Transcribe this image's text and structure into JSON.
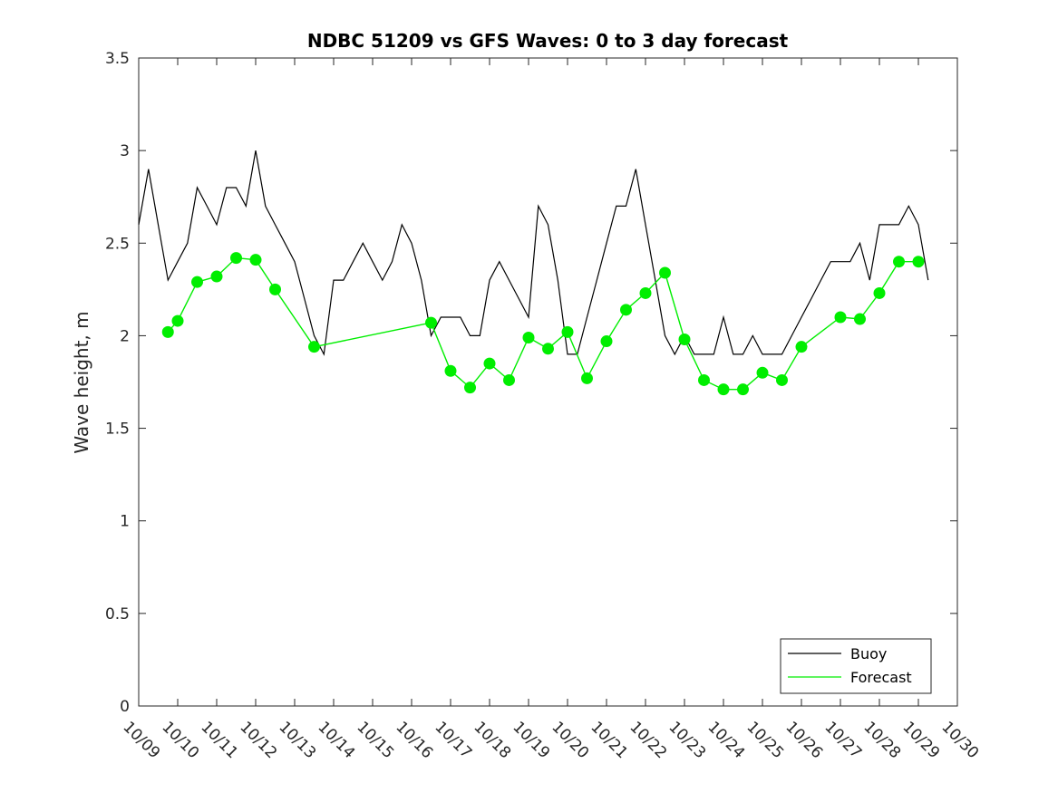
{
  "chart_data": {
    "type": "line",
    "title": "NDBC 51209 vs GFS Waves: 0 to 3 day forecast",
    "xlabel": "",
    "ylabel": "Wave height, m",
    "xlim": [
      0,
      21
    ],
    "ylim": [
      0,
      3.5
    ],
    "x_ticks": [
      0,
      1,
      2,
      3,
      4,
      5,
      6,
      7,
      8,
      9,
      10,
      11,
      12,
      13,
      14,
      15,
      16,
      17,
      18,
      19,
      20,
      21
    ],
    "x_tick_labels": [
      "10/09",
      "10/10",
      "10/11",
      "10/12",
      "10/13",
      "10/14",
      "10/15",
      "10/16",
      "10/17",
      "10/18",
      "10/19",
      "10/20",
      "10/21",
      "10/22",
      "10/23",
      "10/24",
      "10/25",
      "10/26",
      "10/27",
      "10/28",
      "10/29",
      "10/30"
    ],
    "y_ticks": [
      0,
      0.5,
      1,
      1.5,
      2,
      2.5,
      3,
      3.5
    ],
    "y_tick_labels": [
      "0",
      "0.5",
      "1",
      "1.5",
      "2",
      "2.5",
      "3",
      "3.5"
    ],
    "grid": false,
    "legend_position": "bottom-right",
    "colors": {
      "buoy": "#000000",
      "forecast": "#00ee00"
    },
    "series": [
      {
        "name": "Buoy",
        "style": "line",
        "x": [
          0,
          0.25,
          0.5,
          0.75,
          1,
          1.25,
          1.5,
          1.75,
          2,
          2.25,
          2.5,
          2.75,
          3,
          3.25,
          3.5,
          3.75,
          4,
          4.25,
          4.5,
          4.75,
          5,
          5.25,
          5.5,
          5.75,
          6,
          6.25,
          6.5,
          6.75,
          7,
          7.25,
          7.5,
          7.75,
          8,
          8.25,
          8.5,
          8.75,
          9,
          9.25,
          9.5,
          9.75,
          10,
          10.25,
          10.5,
          10.75,
          11,
          11.25,
          11.5,
          11.75,
          12,
          12.25,
          12.5,
          12.75,
          13,
          13.25,
          13.5,
          13.75,
          14,
          14.25,
          14.5,
          14.75,
          15,
          15.25,
          15.5,
          15.75,
          16,
          16.25,
          16.5,
          16.75,
          17,
          17.25,
          17.5,
          17.75,
          18,
          18.25,
          18.5,
          18.75,
          19,
          19.25,
          19.5,
          19.75,
          20,
          20.25
        ],
        "values": [
          2.6,
          2.9,
          2.6,
          2.3,
          2.4,
          2.5,
          2.8,
          2.7,
          2.6,
          2.8,
          2.8,
          2.7,
          3.0,
          2.7,
          2.6,
          2.5,
          2.4,
          2.2,
          2.0,
          1.9,
          2.3,
          2.3,
          2.4,
          2.5,
          2.4,
          2.3,
          2.4,
          2.6,
          2.5,
          2.3,
          2.0,
          2.1,
          2.1,
          2.1,
          2.0,
          2.0,
          2.3,
          2.4,
          2.3,
          2.2,
          2.1,
          2.7,
          2.6,
          2.3,
          1.9,
          1.9,
          2.1,
          2.3,
          2.5,
          2.7,
          2.7,
          2.9,
          2.6,
          2.3,
          2.0,
          1.9,
          2.0,
          1.9,
          1.9,
          1.9,
          2.1,
          1.9,
          1.9,
          2.0,
          1.9,
          1.9,
          1.9,
          2.0,
          2.1,
          2.2,
          2.3,
          2.4,
          2.4,
          2.4,
          2.5,
          2.3,
          2.6,
          2.6,
          2.6,
          2.7,
          2.6,
          2.3
        ]
      },
      {
        "name": "Forecast",
        "style": "line+markers",
        "x": [
          0.75,
          1.0,
          1.5,
          2.0,
          2.5,
          3.0,
          3.5,
          4.5,
          7.5,
          8.0,
          8.5,
          9.0,
          9.5,
          10.0,
          10.5,
          11.0,
          11.5,
          12.0,
          12.5,
          13.0,
          13.5,
          14.0,
          14.5,
          15.0,
          15.5,
          16.0,
          16.5,
          17.0,
          18.0,
          18.5,
          19.0,
          19.5,
          20.0
        ],
        "values": [
          2.02,
          2.08,
          2.29,
          2.32,
          2.42,
          2.41,
          2.25,
          1.94,
          2.07,
          1.81,
          1.72,
          1.85,
          1.76,
          1.99,
          1.93,
          2.02,
          1.77,
          1.97,
          2.14,
          2.23,
          2.34,
          1.98,
          1.76,
          1.71,
          1.71,
          1.8,
          1.76,
          1.94,
          2.1,
          2.09,
          2.23,
          2.4,
          2.4
        ]
      }
    ],
    "legend": [
      {
        "label": "Buoy",
        "color": "#000000"
      },
      {
        "label": "Forecast",
        "color": "#00ee00"
      }
    ]
  }
}
